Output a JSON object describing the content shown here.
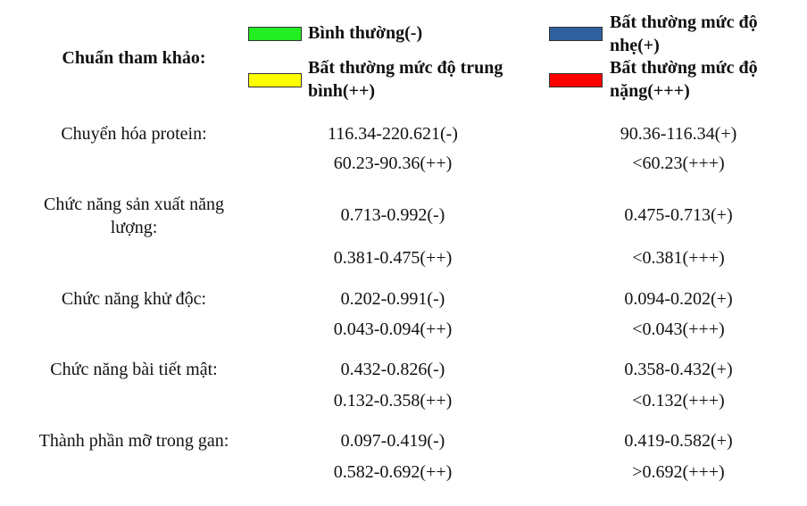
{
  "legend": {
    "label": "Chuẩn tham khảo:",
    "items": [
      {
        "text": "Bình thường(-)",
        "color": "#22ee22"
      },
      {
        "text": "Bất thường mức độ nhẹ(+)",
        "color": "#2e5f9e"
      },
      {
        "text": "Bất thường mức độ trung bình(++)",
        "color": "#ffff00"
      },
      {
        "text": "Bất thường mức độ nặng(+++)",
        "color": "#ff0000"
      }
    ]
  },
  "rows": [
    {
      "name": "Chuyển hóa protein:",
      "ranges": [
        "116.34-220.621(-)",
        "90.36-116.34(+)",
        "60.23-90.36(++)",
        "<60.23(+++)"
      ]
    },
    {
      "name": "Chức năng sản xuất năng lượng:",
      "ranges": [
        "0.713-0.992(-)",
        "0.475-0.713(+)",
        "0.381-0.475(++)",
        "<0.381(+++)"
      ]
    },
    {
      "name": "Chức năng khử độc:",
      "ranges": [
        "0.202-0.991(-)",
        "0.094-0.202(+)",
        "0.043-0.094(++)",
        "<0.043(+++)"
      ]
    },
    {
      "name": "Chức năng bài tiết mật:",
      "ranges": [
        "0.432-0.826(-)",
        "0.358-0.432(+)",
        "0.132-0.358(++)",
        "<0.132(+++)"
      ]
    },
    {
      "name": "Thành phần mỡ trong gan:",
      "ranges": [
        "0.097-0.419(-)",
        "0.419-0.582(+)",
        "0.582-0.692(++)",
        ">0.692(+++)"
      ]
    }
  ]
}
